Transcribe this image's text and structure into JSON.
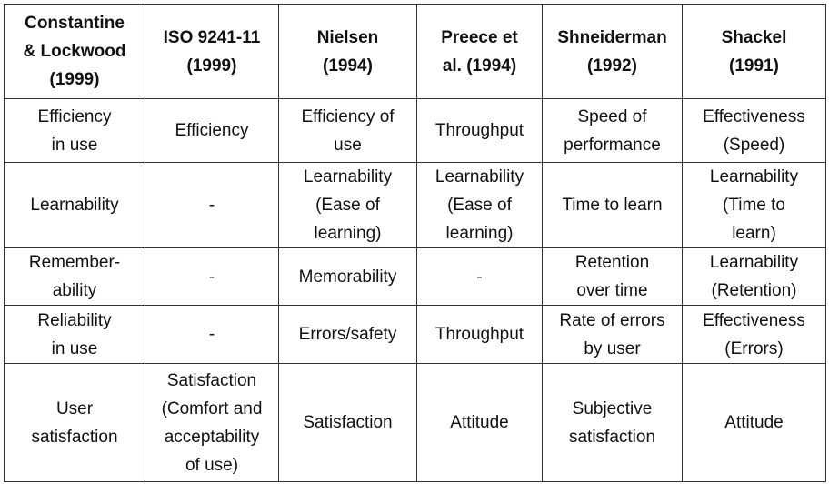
{
  "table": {
    "headers": [
      "Constantine\n& Lockwood\n(1999)",
      "ISO 9241-11\n(1999)",
      "Nielsen\n(1994)",
      "Preece et\nal. (1994)",
      "Shneiderman\n(1992)",
      "Shackel\n(1991)"
    ],
    "rows": [
      [
        "Efficiency\nin use",
        "Efficiency",
        "Efficiency of\nuse",
        "Throughput",
        "Speed of\nperformance",
        "Effectiveness\n(Speed)"
      ],
      [
        "Learnability",
        "-",
        "Learnability\n(Ease of\nlearning)",
        "Learnability\n(Ease of\nlearning)",
        "Time to learn",
        "Learnability\n(Time to\nlearn)"
      ],
      [
        "Remember-\nability",
        "-",
        "Memorability",
        "-",
        "Retention\nover time",
        "Learnability\n(Retention)"
      ],
      [
        "Reliability\nin use",
        "-",
        "Errors/safety",
        "Throughput",
        "Rate of errors\nby user",
        "Effectiveness\n(Errors)"
      ],
      [
        "User\nsatisfaction",
        "Satisfaction\n(Comfort and\nacceptability\nof use)",
        "Satisfaction",
        "Attitude",
        "Subjective\nsatisfaction",
        "Attitude"
      ]
    ]
  }
}
